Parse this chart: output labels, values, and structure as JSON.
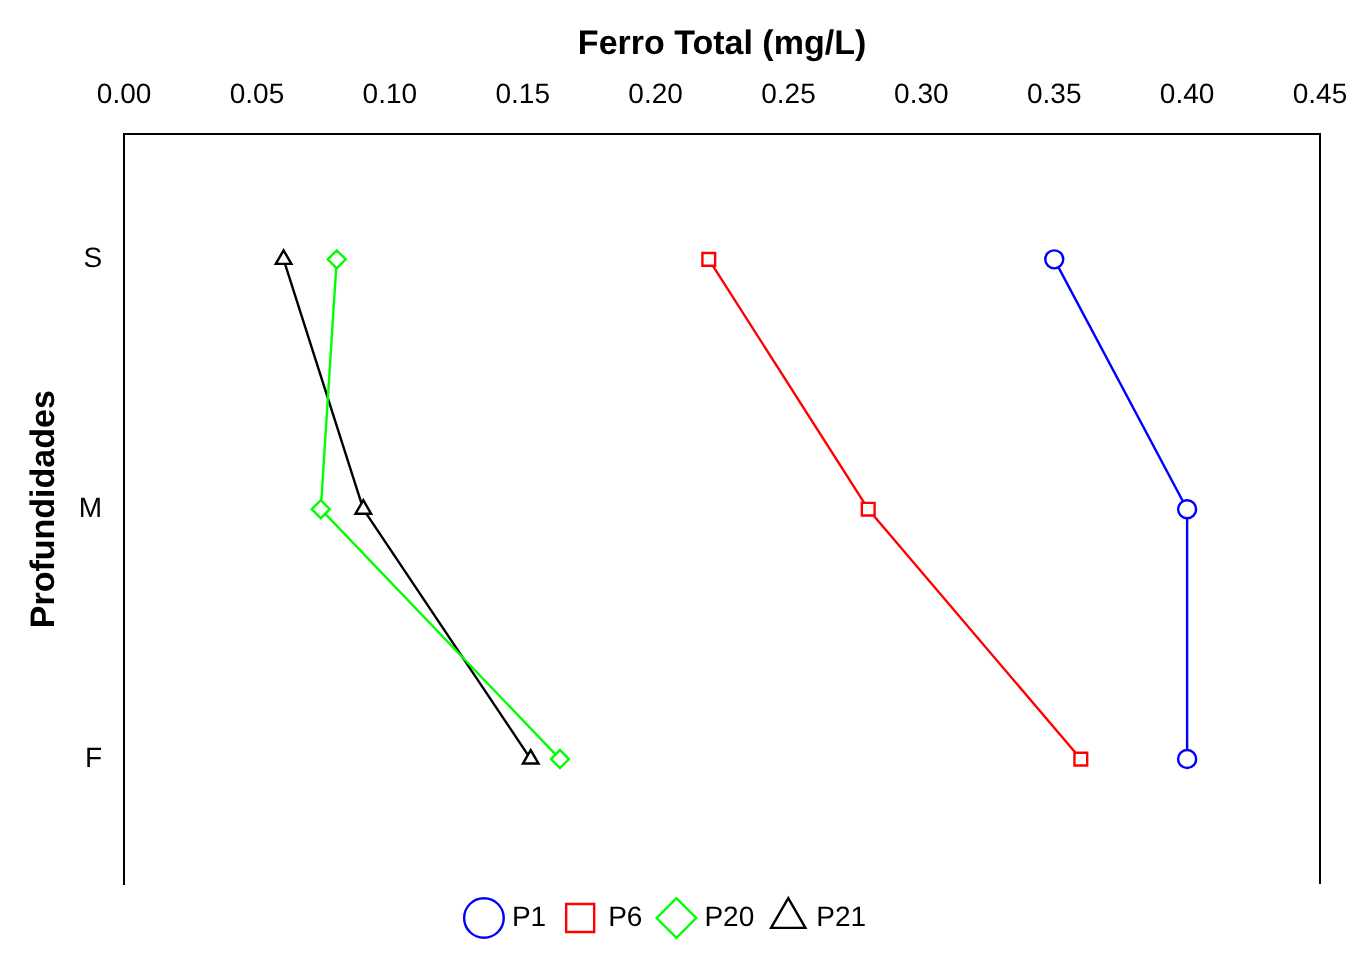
{
  "chart_data": {
    "type": "line",
    "xlabel": "Ferro Total (mg/L)",
    "ylabel": "Profundidades",
    "categories": [
      "S",
      "M",
      "F"
    ],
    "xlim": [
      0,
      0.45
    ],
    "xticks": [
      {
        "value": 0,
        "label": "0.00"
      },
      {
        "value": 0.05,
        "label": "0.05"
      },
      {
        "value": 0.1,
        "label": "0.10"
      },
      {
        "value": 0.15,
        "label": "0.15"
      },
      {
        "value": 0.2,
        "label": "0.20"
      },
      {
        "value": 0.25,
        "label": "0.25"
      },
      {
        "value": 0.3,
        "label": "0.30"
      },
      {
        "value": 0.35,
        "label": "0.35"
      },
      {
        "value": 0.4,
        "label": "0.40"
      },
      {
        "value": 0.45,
        "label": "0.45"
      }
    ],
    "orientation": "horizontal",
    "grid": false,
    "legend": "bottom",
    "line_style": "solid",
    "series": [
      {
        "name": "P1",
        "color": "#0000ff",
        "marker": "circle",
        "values": [
          0.35,
          0.4,
          0.4
        ]
      },
      {
        "name": "P6",
        "color": "#ff0000",
        "marker": "square",
        "values": [
          0.22,
          0.28,
          0.36
        ]
      },
      {
        "name": "P20",
        "color": "#00ff00",
        "marker": "diamond",
        "values": [
          0.08,
          0.074,
          0.164
        ]
      },
      {
        "name": "P21",
        "color": "#000000",
        "marker": "triangle",
        "values": [
          0.06,
          0.09,
          0.153
        ]
      }
    ]
  }
}
